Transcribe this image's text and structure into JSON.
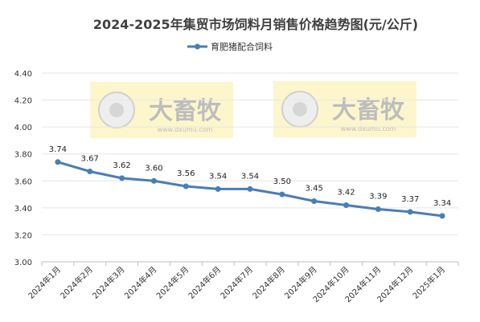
{
  "chart_data": {
    "type": "line",
    "title": "2024-2025年集贸市场饲料月销售价格趋势图(元/公斤)",
    "xlabel": "",
    "ylabel": "",
    "categories": [
      "2024年1月",
      "2024年2月",
      "2024年3月",
      "2024年4月",
      "2024年5月",
      "2024年6月",
      "2024年7月",
      "2024年8月",
      "2024年9月",
      "2024年10月",
      "2024年11月",
      "2024年12月",
      "2025年1月"
    ],
    "series": [
      {
        "name": "育肥猪配合饲料",
        "values": [
          3.74,
          3.67,
          3.62,
          3.6,
          3.56,
          3.54,
          3.54,
          3.5,
          3.45,
          3.42,
          3.39,
          3.37,
          3.34
        ],
        "color": "#4a7db5"
      }
    ],
    "ylim": [
      3.0,
      4.4
    ],
    "yticks": [
      "3.00",
      "3.20",
      "3.40",
      "3.60",
      "3.80",
      "4.00",
      "4.20",
      "4.40"
    ],
    "grid": true,
    "legend": "top-center",
    "data_labels": true
  },
  "watermark": {
    "brand": "大畜牧",
    "site": "www.dxumu.com",
    "bg_color": "#fdf6cc"
  }
}
